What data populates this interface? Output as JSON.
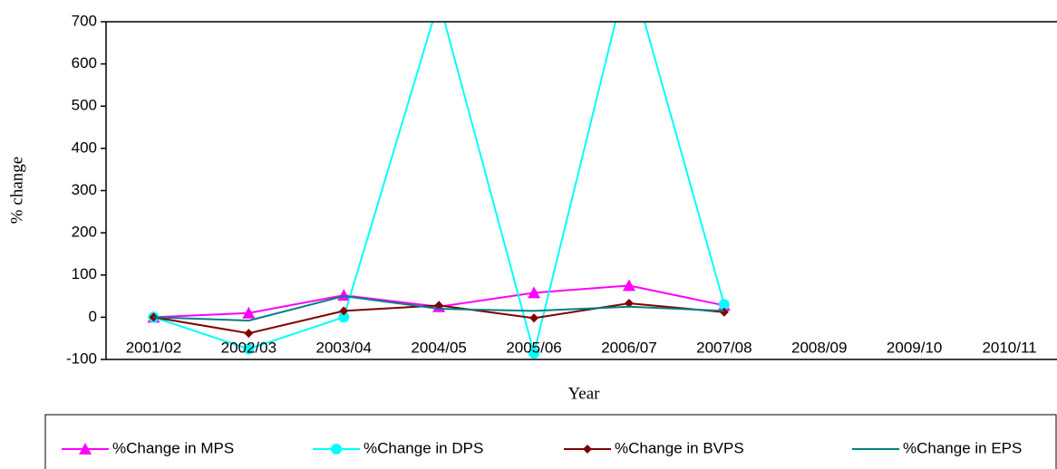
{
  "chart_data": {
    "type": "line",
    "xlabel": "Year",
    "ylabel": "% change",
    "categories": [
      "2001/02",
      "2002/03",
      "2003/04",
      "2004/05",
      "2005/06",
      "2006/07",
      "2007/08",
      "2008/09",
      "2009/10",
      "2010/11"
    ],
    "series": [
      {
        "name": "%Change in MPS",
        "color": "#ff00ff",
        "marker": "triangle",
        "values": [
          0,
          10,
          52,
          25,
          58,
          75,
          28,
          null,
          null,
          null
        ]
      },
      {
        "name": "%Change in DPS",
        "color": "#00ffff",
        "marker": "circle",
        "values": [
          0,
          -75,
          0,
          750,
          -85,
          830,
          30,
          null,
          null,
          null
        ]
      },
      {
        "name": "%Change in BVPS",
        "color": "#800000",
        "marker": "diamond",
        "values": [
          0,
          -38,
          15,
          28,
          -2,
          33,
          12,
          null,
          null,
          null
        ]
      },
      {
        "name": "%Change in EPS",
        "color": "#008080",
        "marker": "none",
        "values": [
          0,
          -8,
          50,
          20,
          15,
          25,
          15,
          null,
          null,
          null
        ]
      }
    ],
    "ylim": [
      -100,
      700
    ],
    "yticks": [
      -100,
      0,
      100,
      200,
      300,
      400,
      500,
      600,
      700
    ],
    "grid": false,
    "legend": "bottom"
  }
}
